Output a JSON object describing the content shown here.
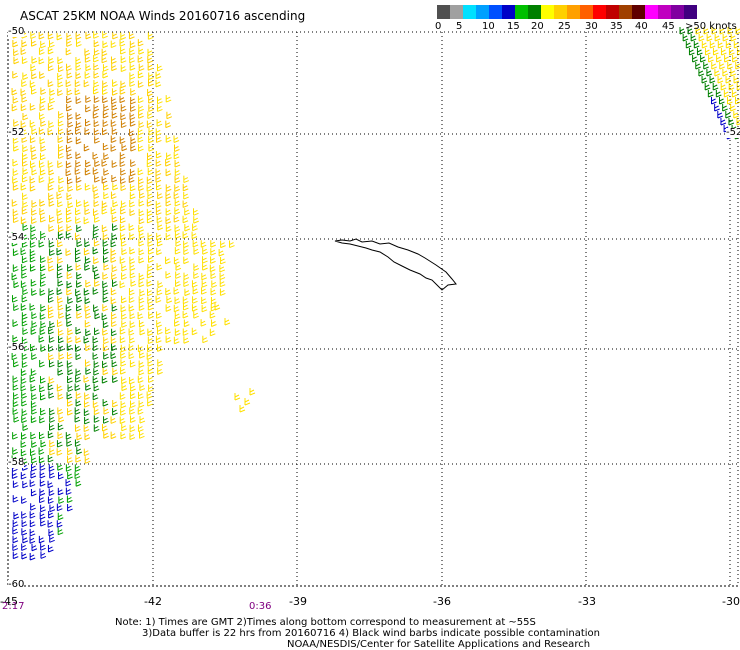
{
  "title": "ASCAT 25KM NOAA Winds 20160716 ascending",
  "colorbar": {
    "colors": [
      "#505050",
      "#a0a0a0",
      "#00e0ff",
      "#00a0ff",
      "#0050ff",
      "#0000c8",
      "#00c000",
      "#008000",
      "#ffff00",
      "#ffd000",
      "#ffa000",
      "#ff6000",
      "#ff0000",
      "#c00000",
      "#a04000",
      "#600000",
      "#ff00ff",
      "#c000c0",
      "#8000a0",
      "#400080"
    ],
    "labels": [
      "0",
      "5",
      "10",
      "15",
      "20",
      "25",
      "30",
      "35",
      "40",
      "45",
      ">50 knots"
    ]
  },
  "map": {
    "lat_labels": [
      "-50",
      "-52",
      "-54",
      "-56",
      "-58",
      "-60"
    ],
    "lon_labels": [
      "-45",
      "-42",
      "-39",
      "-36",
      "-33",
      "-30"
    ],
    "lon_range": [
      -45,
      -30
    ],
    "lat_range": [
      -50,
      -60
    ],
    "grid": "dotted",
    "island": "South Georgia"
  },
  "times": [
    "2:17",
    "0:36"
  ],
  "notes": [
    "Note: 1) Times are GMT 2)Times along bottom correspond to measurement at ~55S",
    "3)Data buffer is 22 hrs from 20160716 4) Black wind barbs indicate possible contamination",
    "NOAA/NESDIS/Center for Satellite Applications and Research"
  ]
}
